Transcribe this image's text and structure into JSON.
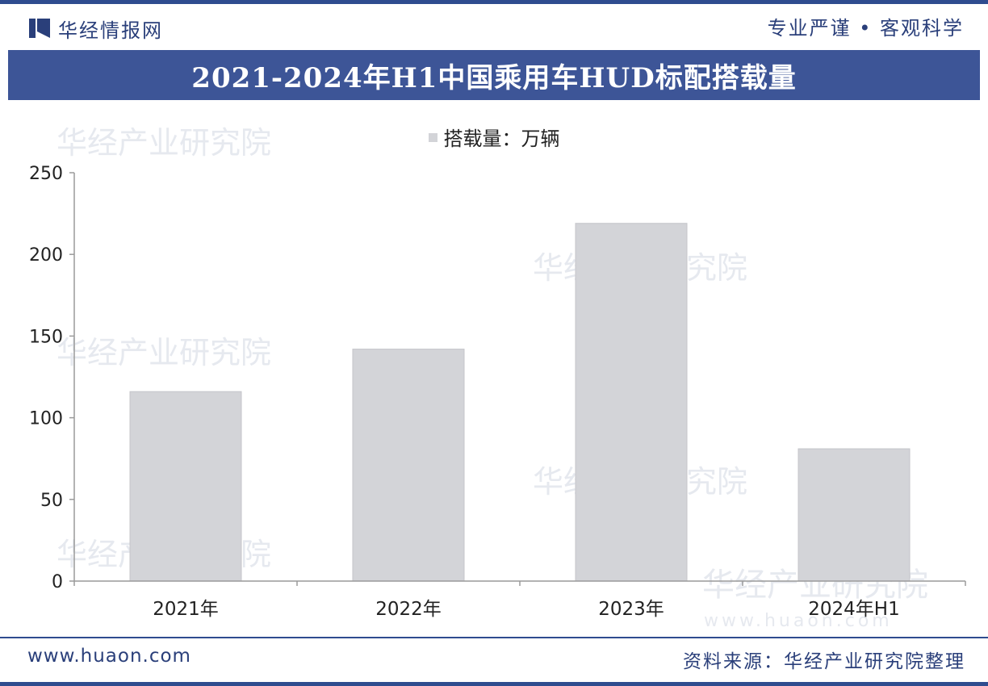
{
  "header": {
    "brand": "华经情报网",
    "slogan": "专业严谨 • 客观科学"
  },
  "watermark": {
    "text": "华经产业研究院",
    "url": "www.huaon.com"
  },
  "footer": {
    "website": "www.huaon.com",
    "source": "资料来源：华经产业研究院整理"
  },
  "colors": {
    "brand_blue": "#2f4c8f",
    "title_bar": "#3d5597",
    "bar_fill": "#d3d4d8",
    "bar_edge": "#c4c5ca"
  },
  "chart_data": {
    "type": "bar",
    "title": "2021-2024年H1中国乘用车HUD标配搭载量",
    "legend": "搭载量：万辆",
    "legend_position": "top-center",
    "categories": [
      "2021年",
      "2022年",
      "2023年",
      "2024年H1"
    ],
    "values": [
      116,
      142,
      219,
      81
    ],
    "ylim": [
      0,
      250
    ],
    "yticks": [
      0,
      50,
      100,
      150,
      200,
      250
    ],
    "grid": false
  }
}
